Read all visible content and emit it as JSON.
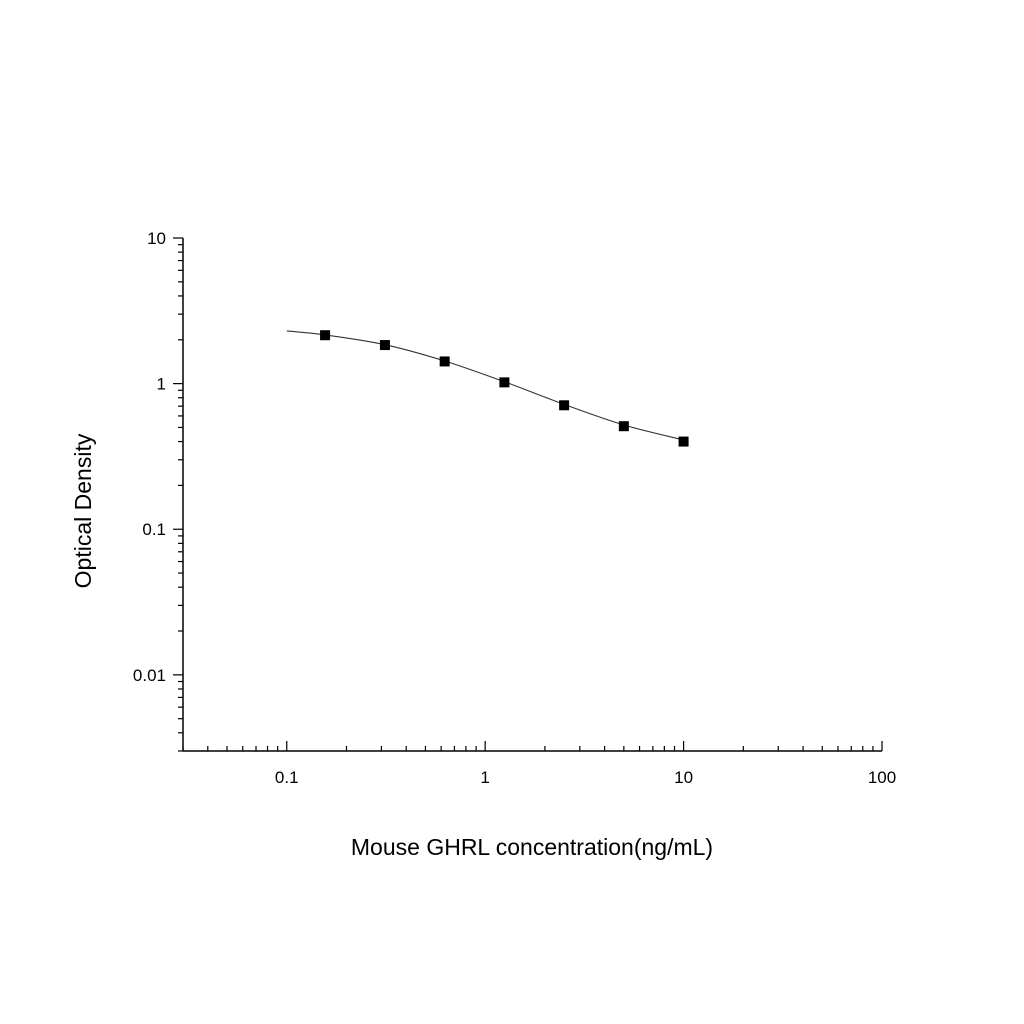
{
  "chart_data": {
    "type": "scatter",
    "xlabel": "Mouse GHRL concentration(ng/mL)",
    "ylabel": "Optical Density",
    "xscale": "log",
    "yscale": "log",
    "xlim": [
      0.03,
      100
    ],
    "ylim": [
      0.003,
      10
    ],
    "x_ticks": [
      {
        "value": 0.1,
        "label": "0.1"
      },
      {
        "value": 1,
        "label": "1"
      },
      {
        "value": 10,
        "label": "10"
      },
      {
        "value": 100,
        "label": "100"
      }
    ],
    "y_ticks": [
      {
        "value": 0.01,
        "label": "0.01"
      },
      {
        "value": 0.1,
        "label": "0.1"
      },
      {
        "value": 1,
        "label": "1"
      },
      {
        "value": 10,
        "label": "10"
      }
    ],
    "grid": false,
    "series": [
      {
        "marker": "square",
        "color": "#000000",
        "x": [
          0.156,
          0.3125,
          0.625,
          1.25,
          2.5,
          5,
          10
        ],
        "y": [
          2.15,
          1.84,
          1.42,
          1.02,
          0.71,
          0.51,
          0.4
        ]
      }
    ],
    "fit_curve": {
      "color": "#333333",
      "x": [
        0.1,
        0.156,
        0.3125,
        0.625,
        1.25,
        2.5,
        5,
        10
      ],
      "y": [
        2.3,
        2.16,
        1.85,
        1.43,
        1.03,
        0.72,
        0.52,
        0.41
      ]
    }
  }
}
